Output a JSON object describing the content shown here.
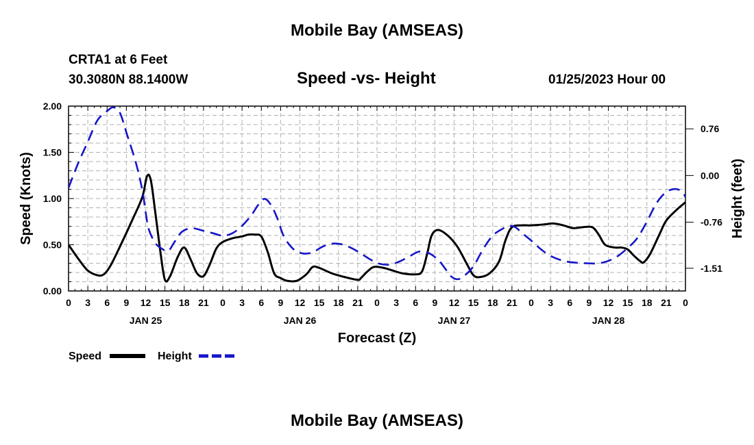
{
  "header": {
    "title": "Mobile Bay (AMSEAS)",
    "station_line1": "CRTA1 at 6 Feet",
    "station_line2": "30.3080N  88.1400W",
    "plot_title": "Speed -vs- Height",
    "datetime": "01/25/2023 Hour 00"
  },
  "footer": {
    "title": "Mobile Bay (AMSEAS)"
  },
  "colors": {
    "speed": "#000000",
    "height": "#1515c8",
    "grid": "#b0b0b0"
  },
  "chart_data": {
    "type": "line",
    "title": "Speed -vs- Height",
    "xlabel": "Forecast (Z)",
    "ylabel": "Speed (Knots)",
    "y2label": "Height (feet)",
    "xlim": [
      0,
      96
    ],
    "ylim": [
      0,
      2.0
    ],
    "y2lim": [
      -1.88,
      1.13
    ],
    "x_tick_labels": [
      "0",
      "3",
      "6",
      "9",
      "12",
      "15",
      "18",
      "21",
      "0",
      "3",
      "6",
      "9",
      "12",
      "15",
      "18",
      "21",
      "0",
      "3",
      "6",
      "9",
      "12",
      "15",
      "18",
      "21",
      "0",
      "3",
      "6",
      "9",
      "12",
      "15",
      "18",
      "21",
      "0"
    ],
    "date_labels": [
      {
        "label": "JAN 25",
        "hour": 12
      },
      {
        "label": "JAN 26",
        "hour": 36
      },
      {
        "label": "JAN 27",
        "hour": 60
      },
      {
        "label": "JAN 28",
        "hour": 84
      }
    ],
    "y_ticks": [
      "0.00",
      "0.50",
      "1.00",
      "1.50",
      "2.00"
    ],
    "y2_ticks": [
      "-1.51",
      "-0.76",
      "0.00",
      "0.76"
    ],
    "grid": true,
    "legend": {
      "position": "bottom-left",
      "entries": [
        "Speed",
        "Height"
      ]
    },
    "series": [
      {
        "name": "Speed",
        "axis": "left",
        "points": [
          [
            0,
            0.5
          ],
          [
            1.5,
            0.35
          ],
          [
            3,
            0.22
          ],
          [
            4.5,
            0.17
          ],
          [
            5.5,
            0.18
          ],
          [
            6.5,
            0.27
          ],
          [
            8,
            0.48
          ],
          [
            10,
            0.78
          ],
          [
            11.5,
            1.02
          ],
          [
            12.2,
            1.24
          ],
          [
            12.8,
            1.2
          ],
          [
            13.5,
            0.85
          ],
          [
            14.3,
            0.42
          ],
          [
            15,
            0.12
          ],
          [
            15.8,
            0.16
          ],
          [
            17,
            0.37
          ],
          [
            18,
            0.47
          ],
          [
            19,
            0.34
          ],
          [
            20,
            0.19
          ],
          [
            21,
            0.16
          ],
          [
            22,
            0.29
          ],
          [
            23,
            0.46
          ],
          [
            24,
            0.53
          ],
          [
            25.5,
            0.57
          ],
          [
            27,
            0.59
          ],
          [
            28,
            0.61
          ],
          [
            29,
            0.61
          ],
          [
            30,
            0.59
          ],
          [
            31,
            0.42
          ],
          [
            32,
            0.19
          ],
          [
            33,
            0.14
          ],
          [
            34,
            0.11
          ],
          [
            35.5,
            0.11
          ],
          [
            37,
            0.18
          ],
          [
            38,
            0.26
          ],
          [
            39,
            0.25
          ],
          [
            41,
            0.19
          ],
          [
            43,
            0.15
          ],
          [
            45,
            0.12
          ],
          [
            45.5,
            0.14
          ],
          [
            46.5,
            0.21
          ],
          [
            47.5,
            0.26
          ],
          [
            49,
            0.25
          ],
          [
            50.5,
            0.22
          ],
          [
            52,
            0.19
          ],
          [
            54,
            0.18
          ],
          [
            55,
            0.21
          ],
          [
            55.8,
            0.4
          ],
          [
            56.5,
            0.6
          ],
          [
            57.5,
            0.66
          ],
          [
            59,
            0.6
          ],
          [
            60.5,
            0.48
          ],
          [
            62,
            0.29
          ],
          [
            63,
            0.17
          ],
          [
            64,
            0.15
          ],
          [
            65.5,
            0.19
          ],
          [
            67,
            0.32
          ],
          [
            68,
            0.55
          ],
          [
            69,
            0.69
          ],
          [
            70.5,
            0.71
          ],
          [
            72,
            0.71
          ],
          [
            74,
            0.72
          ],
          [
            75.5,
            0.73
          ],
          [
            77,
            0.71
          ],
          [
            78.5,
            0.68
          ],
          [
            80,
            0.69
          ],
          [
            81.5,
            0.69
          ],
          [
            82.5,
            0.61
          ],
          [
            83.5,
            0.5
          ],
          [
            85,
            0.47
          ],
          [
            86,
            0.47
          ],
          [
            87,
            0.45
          ],
          [
            88,
            0.38
          ],
          [
            89,
            0.32
          ],
          [
            89.5,
            0.31
          ],
          [
            90.5,
            0.4
          ],
          [
            92,
            0.62
          ],
          [
            93,
            0.76
          ],
          [
            94.5,
            0.87
          ],
          [
            96,
            0.96
          ]
        ]
      },
      {
        "name": "Height",
        "axis": "right",
        "points": [
          [
            0,
            -0.2
          ],
          [
            1.5,
            0.2
          ],
          [
            3,
            0.55
          ],
          [
            4.5,
            0.9
          ],
          [
            6,
            1.05
          ],
          [
            7,
            1.11
          ],
          [
            8,
            1.02
          ],
          [
            9,
            0.7
          ],
          [
            10.5,
            0.2
          ],
          [
            11.5,
            -0.25
          ],
          [
            12,
            -0.6
          ],
          [
            12.5,
            -0.88
          ],
          [
            13.5,
            -1.1
          ],
          [
            14.5,
            -1.19
          ],
          [
            15.5,
            -1.23
          ],
          [
            16.5,
            -1.08
          ],
          [
            17.5,
            -0.93
          ],
          [
            18.5,
            -0.87
          ],
          [
            19.5,
            -0.86
          ],
          [
            21,
            -0.9
          ],
          [
            22.5,
            -0.94
          ],
          [
            24,
            -0.98
          ],
          [
            25.5,
            -0.94
          ],
          [
            27,
            -0.82
          ],
          [
            28.5,
            -0.64
          ],
          [
            29.5,
            -0.48
          ],
          [
            30.5,
            -0.38
          ],
          [
            31.5,
            -0.48
          ],
          [
            32.5,
            -0.7
          ],
          [
            33.5,
            -0.99
          ],
          [
            35,
            -1.2
          ],
          [
            36.5,
            -1.27
          ],
          [
            38,
            -1.25
          ],
          [
            39.5,
            -1.16
          ],
          [
            41,
            -1.11
          ],
          [
            42.5,
            -1.12
          ],
          [
            44,
            -1.18
          ],
          [
            45.5,
            -1.27
          ],
          [
            47,
            -1.37
          ],
          [
            48.5,
            -1.44
          ],
          [
            50,
            -1.45
          ],
          [
            51.5,
            -1.4
          ],
          [
            53,
            -1.32
          ],
          [
            54.5,
            -1.24
          ],
          [
            56,
            -1.26
          ],
          [
            57.5,
            -1.37
          ],
          [
            58.5,
            -1.5
          ],
          [
            59.5,
            -1.64
          ],
          [
            60.5,
            -1.69
          ],
          [
            61.5,
            -1.64
          ],
          [
            63,
            -1.48
          ],
          [
            64.5,
            -1.2
          ],
          [
            66,
            -0.98
          ],
          [
            67.5,
            -0.87
          ],
          [
            68.5,
            -0.82
          ],
          [
            69.5,
            -0.84
          ],
          [
            70.5,
            -0.93
          ],
          [
            72,
            -1.06
          ],
          [
            73.5,
            -1.2
          ],
          [
            75,
            -1.31
          ],
          [
            77,
            -1.39
          ],
          [
            79,
            -1.42
          ],
          [
            81,
            -1.43
          ],
          [
            82.5,
            -1.43
          ],
          [
            84,
            -1.39
          ],
          [
            85.5,
            -1.31
          ],
          [
            87,
            -1.18
          ],
          [
            88.5,
            -1.02
          ],
          [
            90,
            -0.75
          ],
          [
            91.5,
            -0.45
          ],
          [
            93,
            -0.27
          ],
          [
            94.5,
            -0.22
          ],
          [
            95.5,
            -0.27
          ],
          [
            96,
            -0.35
          ]
        ]
      }
    ]
  }
}
